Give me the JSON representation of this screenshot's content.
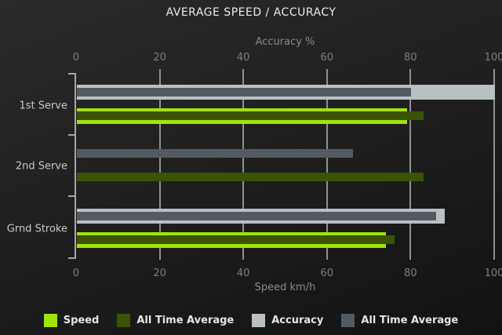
{
  "chart_data": {
    "type": "bar",
    "orientation": "horizontal",
    "title": "AVERAGE SPEED / ACCURACY",
    "top_axis": {
      "label": "Accuracy %",
      "min": 0,
      "max": 100,
      "ticks": [
        "0",
        "20",
        "40",
        "60",
        "80",
        "100"
      ]
    },
    "bottom_axis": {
      "label": "Speed km/h",
      "min": 0,
      "max": 100,
      "ticks": [
        "0",
        "20",
        "40",
        "60",
        "80",
        "100"
      ]
    },
    "categories": [
      "1st Serve",
      "2nd Serve",
      "Grnd Stroke"
    ],
    "series": [
      {
        "name": "Speed",
        "axis": "bottom",
        "role": "main",
        "color": "#9fe30b",
        "values": [
          79,
          null,
          74
        ]
      },
      {
        "name": "All Time Average",
        "axis": "bottom",
        "role": "overlay",
        "color": "#3b5305",
        "values": [
          83,
          83,
          76
        ]
      },
      {
        "name": "Accuracy",
        "axis": "top",
        "role": "main",
        "color": "#b9c0c4",
        "values": [
          100,
          null,
          88
        ]
      },
      {
        "name": "All Time Average",
        "axis": "top",
        "role": "overlay",
        "color": "#535b62",
        "values": [
          80,
          66,
          86
        ]
      }
    ],
    "legend": {
      "position": "bottom",
      "items": [
        {
          "label": "Speed",
          "color": "#9fe30b"
        },
        {
          "label": "All Time Average",
          "color": "#3b5305"
        },
        {
          "label": "Accuracy",
          "color": "#b9c0c4"
        },
        {
          "label": "All Time Average",
          "color": "#535b62"
        }
      ]
    },
    "grid": true,
    "xlim": [
      0,
      100
    ]
  },
  "colors": {
    "background": "#1e1e1e",
    "grid": "#8e9294",
    "axis": "#a6a6a6",
    "tick_label": "#7f7f7f",
    "axis_title": "#8a8a8a",
    "category_label": "#c9c9c9",
    "title": "#ececec",
    "legend_text": "#e5e5e5"
  }
}
